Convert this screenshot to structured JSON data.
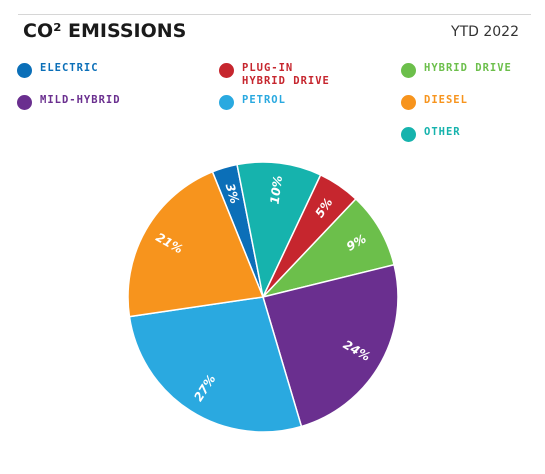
{
  "header": {
    "title": "CO² EMISSIONS",
    "period": "YTD 2022"
  },
  "chart_data": {
    "type": "pie",
    "title": "CO² EMISSIONS",
    "subtitle": "YTD 2022",
    "legend_position": "top",
    "categories": [
      "Electric",
      "Other",
      "Plug-in Hybrid Drive",
      "Hybrid Drive",
      "Mild-Hybrid",
      "Petrol",
      "Diesel"
    ],
    "values": [
      3,
      10,
      5,
      9,
      24,
      27,
      21
    ],
    "labels": [
      "3%",
      "10%",
      "5%",
      "9%",
      "24%",
      "27%",
      "21%"
    ],
    "colors": [
      "#0b6fb8",
      "#16b3ad",
      "#c6262e",
      "#6cbf4b",
      "#6a2f8f",
      "#2aa9e0",
      "#f7941d"
    ]
  },
  "legend": [
    {
      "label": "Electric",
      "color": "#0b6fb8"
    },
    {
      "label": "Plug-in\nHybrid Drive",
      "color": "#c6262e"
    },
    {
      "label": "Hybrid Drive",
      "color": "#6cbf4b"
    },
    {
      "label": "Mild-Hybrid",
      "color": "#6a2f8f"
    },
    {
      "label": "Petrol",
      "color": "#2aa9e0"
    },
    {
      "label": "Diesel",
      "color": "#f7941d"
    },
    {
      "label": "Other",
      "color": "#16b3ad"
    }
  ]
}
